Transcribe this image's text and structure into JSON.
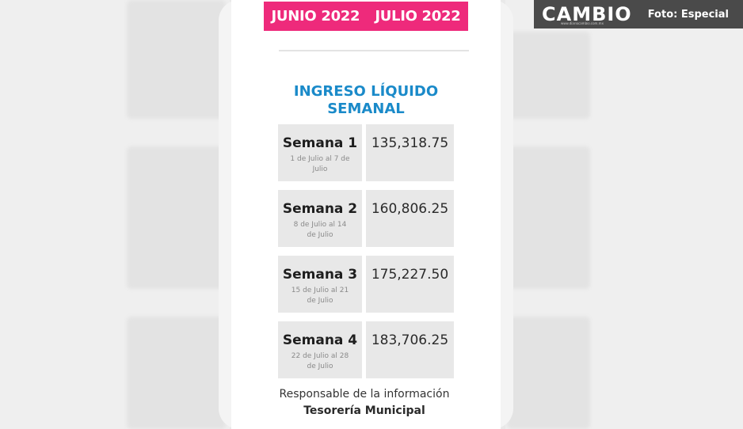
{
  "months": [
    "JUNIO 2022",
    "JULIO 2022"
  ],
  "heading": "INGRESO LÍQUIDO SEMANAL",
  "weeks": [
    {
      "name": "Semana 1",
      "range": "1 de Julio al 7 de Julio",
      "amount": "135,318.75"
    },
    {
      "name": "Semana 2",
      "range": "8 de Julio al 14 de Julio",
      "amount": "160,806.25"
    },
    {
      "name": "Semana 3",
      "range": "15 de Julio al 21 de Julio",
      "amount": "175,227.50"
    },
    {
      "name": "Semana 4",
      "range": "22 de Julio al 28 de Julio",
      "amount": "183,706.25"
    }
  ],
  "footer": {
    "label": "Responsable de la información",
    "value": "Tesorería Municipal"
  },
  "watermark": {
    "logo": "CAMBIO",
    "site": "www.diariocambio.com.mx",
    "credit": "Foto: Especial"
  },
  "colors": {
    "month_bar": "#ee2a7b",
    "heading": "#1a8ac9"
  }
}
